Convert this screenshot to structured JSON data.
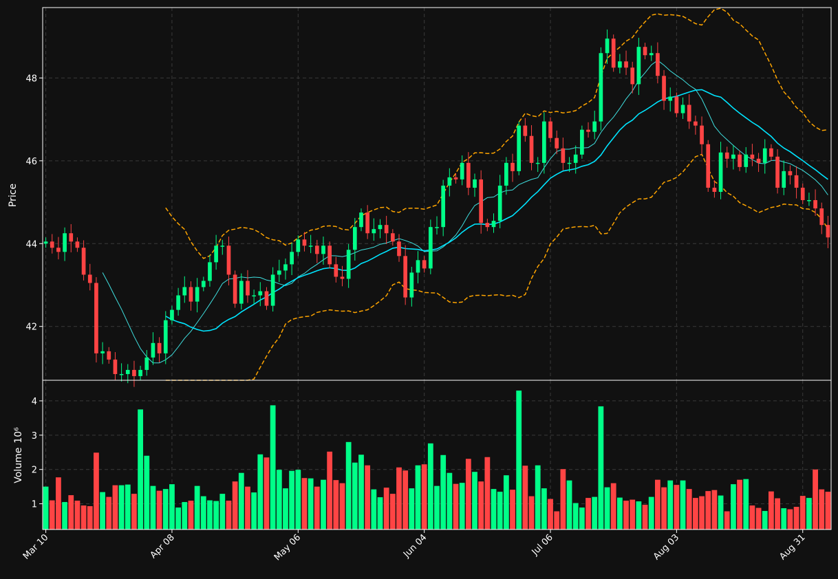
{
  "colors": {
    "background": "#111111",
    "up": "#00ff88",
    "down": "#ff4444",
    "axis": "#ffffff",
    "grid": "#3a3a3a",
    "bollinger": "#ffa500",
    "ma_fast": "#3fe0e0",
    "ma_slow": "#00e5ff"
  },
  "chart_data": {
    "type": "candlestick",
    "style": "dark",
    "grid": true,
    "price_panel": {
      "ylabel": "Price",
      "yticks": [
        42,
        44,
        46,
        48
      ],
      "ylim": [
        40.7,
        49.7
      ]
    },
    "volume_panel": {
      "ylabel": "Volume",
      "ylabel_exponent": "10⁶",
      "yticks": [
        1,
        2,
        3,
        4
      ],
      "ylim": [
        0.25,
        4.6
      ]
    },
    "x_ticks": [
      {
        "label": "Mar 10",
        "index": 0
      },
      {
        "label": "Apr 08",
        "index": 20
      },
      {
        "label": "May 06",
        "index": 40
      },
      {
        "label": "Jun 04",
        "index": 60
      },
      {
        "label": "Jul 06",
        "index": 80
      },
      {
        "label": "Aug 03",
        "index": 100
      },
      {
        "label": "Aug 31",
        "index": 120
      }
    ],
    "closes": [
      44.05,
      43.9,
      43.8,
      44.25,
      44.05,
      43.9,
      43.25,
      43.05,
      41.35,
      41.4,
      41.2,
      40.85,
      40.85,
      40.95,
      40.8,
      40.95,
      41.25,
      41.6,
      41.35,
      42.15,
      42.4,
      42.75,
      42.95,
      42.6,
      42.95,
      43.1,
      43.55,
      43.95,
      43.95,
      43.25,
      42.55,
      43.1,
      42.75,
      42.75,
      42.85,
      42.5,
      43.25,
      43.35,
      43.5,
      43.8,
      44.1,
      43.95,
      43.95,
      43.75,
      43.95,
      43.5,
      43.2,
      43.15,
      43.85,
      44.4,
      44.75,
      44.25,
      44.35,
      44.45,
      44.25,
      44.05,
      43.7,
      42.7,
      43.3,
      43.6,
      43.4,
      44.4,
      44.4,
      45.4,
      45.6,
      45.55,
      45.95,
      45.35,
      45.55,
      44.5,
      44.4,
      44.55,
      45.4,
      45.95,
      45.75,
      46.85,
      46.6,
      45.95,
      45.95,
      46.95,
      46.55,
      46.3,
      45.95,
      45.95,
      46.15,
      46.75,
      46.7,
      46.95,
      48.6,
      48.95,
      48.25,
      48.4,
      48.25,
      47.85,
      48.75,
      48.55,
      48.6,
      48.05,
      47.45,
      47.55,
      47.15,
      47.35,
      46.95,
      46.85,
      46.4,
      45.35,
      45.25,
      46.2,
      46.05,
      46.15,
      45.85,
      46.15,
      46.05,
      45.95,
      46.3,
      46.1,
      45.35,
      45.75,
      45.65,
      45.35,
      45.05,
      45.05,
      44.85,
      44.45,
      44.15
    ],
    "volumes": [
      1.5,
      1.1,
      1.77,
      1.05,
      1.25,
      1.09,
      0.95,
      0.93,
      2.49,
      1.34,
      1.2,
      1.54,
      1.54,
      1.56,
      1.29,
      3.75,
      2.4,
      1.52,
      1.38,
      1.43,
      1.57,
      0.89,
      1.05,
      1.09,
      1.52,
      1.22,
      1.1,
      1.08,
      1.29,
      1.09,
      1.65,
      1.9,
      1.5,
      1.33,
      2.44,
      2.35,
      3.87,
      1.99,
      1.45,
      1.96,
      1.99,
      1.75,
      1.74,
      1.5,
      1.7,
      2.52,
      1.69,
      1.6,
      2.8,
      2.2,
      2.43,
      2.12,
      1.42,
      1.19,
      1.47,
      1.29,
      2.06,
      1.97,
      1.45,
      2.12,
      2.15,
      2.76,
      1.52,
      2.42,
      1.9,
      1.58,
      1.61,
      2.31,
      1.93,
      1.65,
      2.36,
      1.43,
      1.35,
      1.83,
      1.41,
      4.3,
      2.11,
      1.22,
      2.12,
      1.45,
      1.14,
      0.78,
      2.01,
      1.68,
      1.02,
      0.89,
      1.17,
      1.2,
      3.84,
      1.48,
      1.6,
      1.18,
      1.09,
      1.12,
      1.07,
      0.97,
      1.2,
      1.7,
      1.48,
      1.68,
      1.55,
      1.68,
      1.43,
      1.17,
      1.22,
      1.37,
      1.4,
      1.24,
      0.78,
      1.57,
      1.7,
      1.72,
      0.95,
      0.88,
      0.79,
      1.36,
      1.16,
      0.87,
      0.84,
      0.91,
      1.23,
      1.17,
      2.0,
      1.42,
      1.35,
      1.68,
      1.27
    ]
  }
}
